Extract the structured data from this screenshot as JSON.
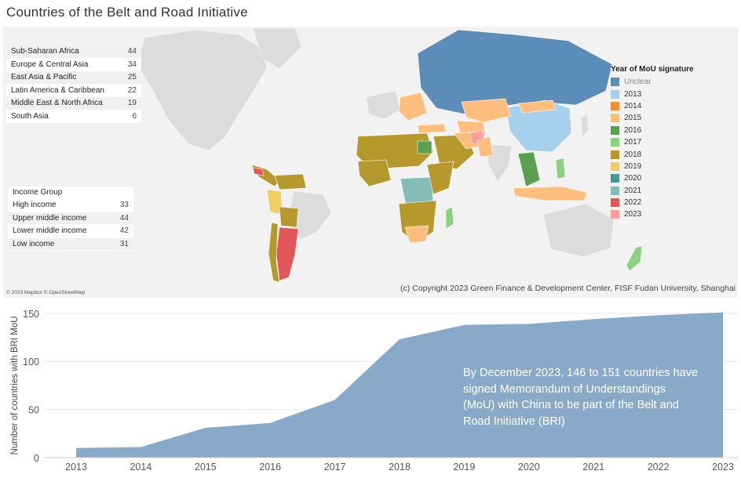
{
  "title": "Countries of the Belt and Road Initiative",
  "region_table": {
    "rows": [
      {
        "label": "Sub-Saharan Africa",
        "value": "44"
      },
      {
        "label": "Europe & Central Asia",
        "value": "34"
      },
      {
        "label": "East Asia & Pacific",
        "value": "25"
      },
      {
        "label": "Latin America & Caribbean",
        "value": "22"
      },
      {
        "label": "Middle East & North Africa",
        "value": "19"
      },
      {
        "label": "South Asia",
        "value": "6"
      }
    ]
  },
  "income_table": {
    "header": "Income Group",
    "rows": [
      {
        "label": "High income",
        "value": "33"
      },
      {
        "label": "Upper middle income",
        "value": "44"
      },
      {
        "label": "Lower middle income",
        "value": "42"
      },
      {
        "label": "Low income",
        "value": "31"
      }
    ]
  },
  "legend": {
    "title": "Year of MoU signature",
    "items": [
      {
        "label": "Unclear",
        "color": "#5b8db8"
      },
      {
        "label": "2013",
        "color": "#a7d0ec"
      },
      {
        "label": "2014",
        "color": "#f28e2b"
      },
      {
        "label": "2015",
        "color": "#ffbe7d"
      },
      {
        "label": "2016",
        "color": "#59a14f"
      },
      {
        "label": "2017",
        "color": "#8cd17d"
      },
      {
        "label": "2018",
        "color": "#b6992d"
      },
      {
        "label": "2019",
        "color": "#f1ce63"
      },
      {
        "label": "2020",
        "color": "#499894"
      },
      {
        "label": "2021",
        "color": "#86bcb6"
      },
      {
        "label": "2022",
        "color": "#e15759"
      },
      {
        "label": "2023",
        "color": "#ff9d9a"
      }
    ]
  },
  "map_attribution": "© 2023 Mapbox © OpenStreetMap",
  "copyright": "(c) Copyright 2023 Green Finance & Development Center, FISF Fudan University, Shanghai",
  "annotation": "By December 2023, 146 to 151 countries have signed Memorandum of Understandings (MoU) with China to be part of the Belt and Road Initiative (BRI)",
  "chart_data": {
    "type": "area",
    "title": "",
    "xlabel": "",
    "ylabel": "Number of countries with BRI MoU",
    "x": [
      "2013",
      "2014",
      "2015",
      "2016",
      "2017",
      "2018",
      "2019",
      "2020",
      "2021",
      "2022",
      "2023"
    ],
    "series": [
      {
        "name": "Countries with BRI MoU",
        "values": [
          10,
          11,
          31,
          36,
          60,
          123,
          138,
          139,
          144,
          148,
          151
        ]
      }
    ],
    "yticks": [
      0,
      50,
      100,
      150
    ],
    "ylim": [
      0,
      155
    ],
    "grid": true,
    "color": "#88aac8"
  }
}
